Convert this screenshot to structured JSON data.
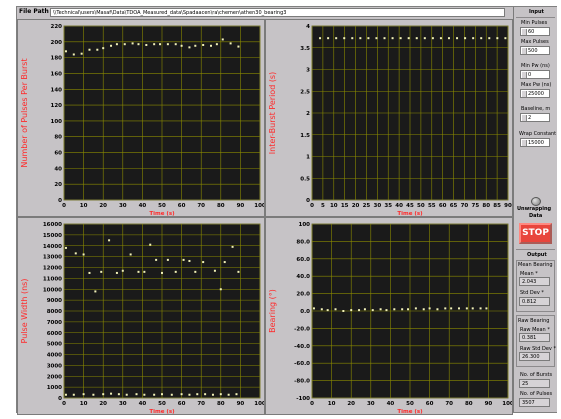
{
  "file_path": {
    "label": "File Path",
    "value": "\\\\Technical\\users\\Masaf\\Data\\TDOA_Measured_data\\Spadaacen\\ra\\chemen\\athen30_bearing3"
  },
  "colors": {
    "plot_bg": "#1a1a1a",
    "grid": "#8a8a00",
    "frame": "#c6c3c6",
    "axis_label": "#ff2a2a",
    "tick_label": "#000000",
    "points": "#f2f2b8",
    "stop_button": "#e8453c"
  },
  "inputs": {
    "title": "Input",
    "min_pulses": {
      "label": "Min Pulses",
      "value": "60"
    },
    "max_pulses": {
      "label": "Max Pulses",
      "value": "500"
    },
    "min_pw": {
      "label": "Min Pw (ns)",
      "value": "0"
    },
    "max_pw": {
      "label": "Max Pw (ns)",
      "value": "25000"
    },
    "baseline": {
      "label": "Baseline, m",
      "value": "2"
    },
    "wrap_constant": {
      "label": "Wrap Constant",
      "value": "15000"
    }
  },
  "unwrapping": {
    "label_line1": "Unwrapping",
    "label_line2": "Data"
  },
  "stop_button": {
    "label": "STOP"
  },
  "output": {
    "title": "Output",
    "mean_bearing": {
      "title": "Mean Bearing",
      "mean_label": "Mean *",
      "mean_value": "2.043",
      "std_label": "Std Dev *",
      "std_value": "0.812"
    },
    "raw_bearing": {
      "title": "Raw Bearing",
      "mean_label": "Raw Mean *",
      "mean_value": "0.381",
      "std_label": "Raw Std Dev *",
      "std_value": "26.300"
    },
    "num_bursts": {
      "label": "No. of Bursts",
      "value": "25"
    },
    "num_pulses": {
      "label": "No. of Pulses",
      "value": "3507"
    }
  },
  "chart_data": [
    {
      "type": "scatter",
      "name": "pulses-per-burst",
      "ylabel": "Number of Pulses Per Burst",
      "xlabel": "Time (s)",
      "xlim": [
        0,
        100
      ],
      "ylim": [
        0,
        220
      ],
      "xticks": [
        0,
        10,
        20,
        30,
        40,
        50,
        60,
        70,
        80,
        90,
        100
      ],
      "yticks": [
        0,
        20,
        40,
        60,
        80,
        100,
        120,
        140,
        160,
        180,
        200,
        220
      ],
      "points": [
        [
          1,
          188
        ],
        [
          5,
          184
        ],
        [
          9,
          185
        ],
        [
          13,
          190
        ],
        [
          17,
          190
        ],
        [
          20,
          192
        ],
        [
          24,
          195
        ],
        [
          27,
          197
        ],
        [
          31,
          197
        ],
        [
          35,
          198
        ],
        [
          38,
          197
        ],
        [
          42,
          196
        ],
        [
          46,
          197
        ],
        [
          49,
          197
        ],
        [
          53,
          197
        ],
        [
          57,
          197
        ],
        [
          60,
          195
        ],
        [
          64,
          193
        ],
        [
          67,
          195
        ],
        [
          71,
          196
        ],
        [
          75,
          195
        ],
        [
          78,
          197
        ],
        [
          81,
          203
        ],
        [
          85,
          198
        ],
        [
          89,
          194
        ]
      ]
    },
    {
      "type": "scatter",
      "name": "inter-burst-period",
      "ylabel": "Inter-Burst Period (s)",
      "xlabel": "Time (s)",
      "xlim": [
        0,
        90
      ],
      "ylim": [
        0,
        4
      ],
      "xticks": [
        0,
        5,
        10,
        15,
        20,
        25,
        30,
        35,
        40,
        45,
        50,
        55,
        60,
        65,
        70,
        75,
        80,
        85,
        90
      ],
      "yticks": [
        0,
        0.5,
        1,
        1.5,
        2,
        2.5,
        3,
        3.5,
        4
      ],
      "yticklabels": [
        "0",
        "0.5",
        "1",
        "1.5",
        "2",
        "2.5",
        "3",
        "3.5",
        "4"
      ],
      "points": [
        [
          3.7,
          3.72
        ],
        [
          7.4,
          3.72
        ],
        [
          11.1,
          3.72
        ],
        [
          14.8,
          3.72
        ],
        [
          18.5,
          3.72
        ],
        [
          22.2,
          3.72
        ],
        [
          25.9,
          3.72
        ],
        [
          29.6,
          3.72
        ],
        [
          33.3,
          3.72
        ],
        [
          37,
          3.72
        ],
        [
          40.7,
          3.72
        ],
        [
          44.4,
          3.72
        ],
        [
          48.1,
          3.72
        ],
        [
          51.8,
          3.72
        ],
        [
          55.5,
          3.72
        ],
        [
          59.2,
          3.72
        ],
        [
          62.9,
          3.72
        ],
        [
          66.6,
          3.72
        ],
        [
          70.3,
          3.72
        ],
        [
          74,
          3.72
        ],
        [
          77.7,
          3.72
        ],
        [
          81.4,
          3.72
        ],
        [
          85.1,
          3.72
        ],
        [
          88.8,
          3.72
        ]
      ]
    },
    {
      "type": "scatter",
      "name": "pulse-width",
      "ylabel": "Pulse Width (ns)",
      "xlabel": "Time (s)",
      "xlim": [
        0,
        100
      ],
      "ylim": [
        0,
        16000
      ],
      "xticks": [
        0,
        10,
        20,
        30,
        40,
        50,
        60,
        70,
        80,
        90,
        100
      ],
      "yticks": [
        0,
        1000,
        2000,
        3000,
        4000,
        5000,
        6000,
        7000,
        8000,
        9000,
        10000,
        11000,
        12000,
        13000,
        14000,
        15000,
        16000
      ],
      "points": [
        [
          1,
          13800
        ],
        [
          6,
          13300
        ],
        [
          10,
          13200
        ],
        [
          13,
          11500
        ],
        [
          16,
          9800
        ],
        [
          19,
          11600
        ],
        [
          23,
          14500
        ],
        [
          27,
          11500
        ],
        [
          30,
          11700
        ],
        [
          34,
          13200
        ],
        [
          38,
          11600
        ],
        [
          41,
          11600
        ],
        [
          44,
          14100
        ],
        [
          47,
          12700
        ],
        [
          50,
          11500
        ],
        [
          53,
          12700
        ],
        [
          57,
          11600
        ],
        [
          61,
          12700
        ],
        [
          64,
          12600
        ],
        [
          67,
          11600
        ],
        [
          71,
          12500
        ],
        [
          77,
          11700
        ],
        [
          80,
          10000
        ],
        [
          82,
          12500
        ],
        [
          86,
          13900
        ],
        [
          89,
          11600
        ],
        [
          1,
          300
        ],
        [
          5,
          300
        ],
        [
          10,
          350
        ],
        [
          15,
          300
        ],
        [
          20,
          350
        ],
        [
          24,
          400
        ],
        [
          28,
          350
        ],
        [
          32,
          300
        ],
        [
          37,
          350
        ],
        [
          41,
          300
        ],
        [
          46,
          300
        ],
        [
          50,
          350
        ],
        [
          55,
          300
        ],
        [
          60,
          350
        ],
        [
          64,
          300
        ],
        [
          68,
          350
        ],
        [
          72,
          350
        ],
        [
          76,
          300
        ],
        [
          80,
          350
        ],
        [
          84,
          300
        ],
        [
          88,
          350
        ]
      ]
    },
    {
      "type": "scatter",
      "name": "bearing",
      "ylabel": "Bearing (°)",
      "xlabel": "Time (s)",
      "xlim": [
        0,
        100
      ],
      "ylim": [
        -100,
        100
      ],
      "xticks": [
        0,
        10,
        20,
        30,
        40,
        50,
        60,
        70,
        80,
        90,
        100
      ],
      "yticks": [
        -100,
        -80,
        -60,
        -40,
        -20,
        0,
        20,
        40,
        60,
        80,
        100
      ],
      "yticklabels": [
        "-100",
        "-80.0",
        "-60.0",
        "-40.0",
        "-20.0",
        "0.0",
        "20.0",
        "40.0",
        "60.0",
        "80.0",
        "100"
      ],
      "points": [
        [
          1,
          3
        ],
        [
          5,
          2
        ],
        [
          8,
          1
        ],
        [
          12,
          2
        ],
        [
          16,
          0
        ],
        [
          20,
          1
        ],
        [
          24,
          1
        ],
        [
          27,
          2
        ],
        [
          31,
          1
        ],
        [
          35,
          2
        ],
        [
          38,
          1
        ],
        [
          42,
          2
        ],
        [
          46,
          2
        ],
        [
          49,
          2
        ],
        [
          53,
          3
        ],
        [
          57,
          2
        ],
        [
          60,
          3
        ],
        [
          64,
          2
        ],
        [
          68,
          3
        ],
        [
          71,
          3
        ],
        [
          75,
          3
        ],
        [
          79,
          3
        ],
        [
          82,
          3
        ],
        [
          86,
          3
        ],
        [
          89,
          3
        ]
      ]
    }
  ]
}
